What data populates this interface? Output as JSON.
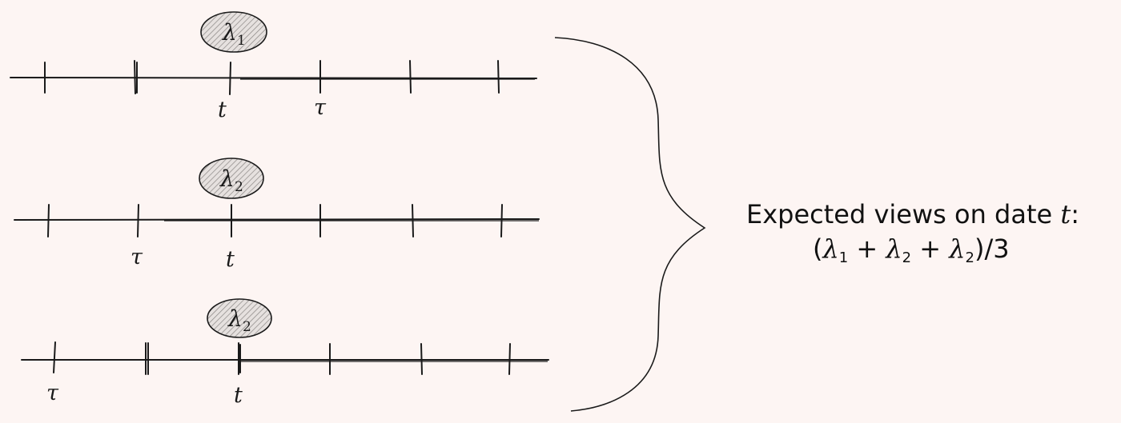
{
  "timelines": [
    {
      "rate_symbol": "λ",
      "rate_subscript": "1",
      "labels": {
        "t": "t",
        "tau": "τ"
      }
    },
    {
      "rate_symbol": "λ",
      "rate_subscript": "2",
      "labels": {
        "t": "t",
        "tau": "τ"
      }
    },
    {
      "rate_symbol": "λ",
      "rate_subscript": "2",
      "labels": {
        "t": "t",
        "tau": "τ"
      }
    }
  ],
  "result": {
    "line1_prefix": "Expected views on date ",
    "line1_var": "t",
    "line1_suffix": ":",
    "open_paren": "(",
    "term1_symbol": "λ",
    "term1_sub": "1",
    "plus1": " + ",
    "term2_symbol": "λ",
    "term2_sub": "2",
    "plus2": " + ",
    "term3_symbol": "λ",
    "term3_sub": "2",
    "close": ")/3"
  },
  "colors": {
    "background": "#fdf5f3",
    "ink": "#1a1a1a"
  }
}
